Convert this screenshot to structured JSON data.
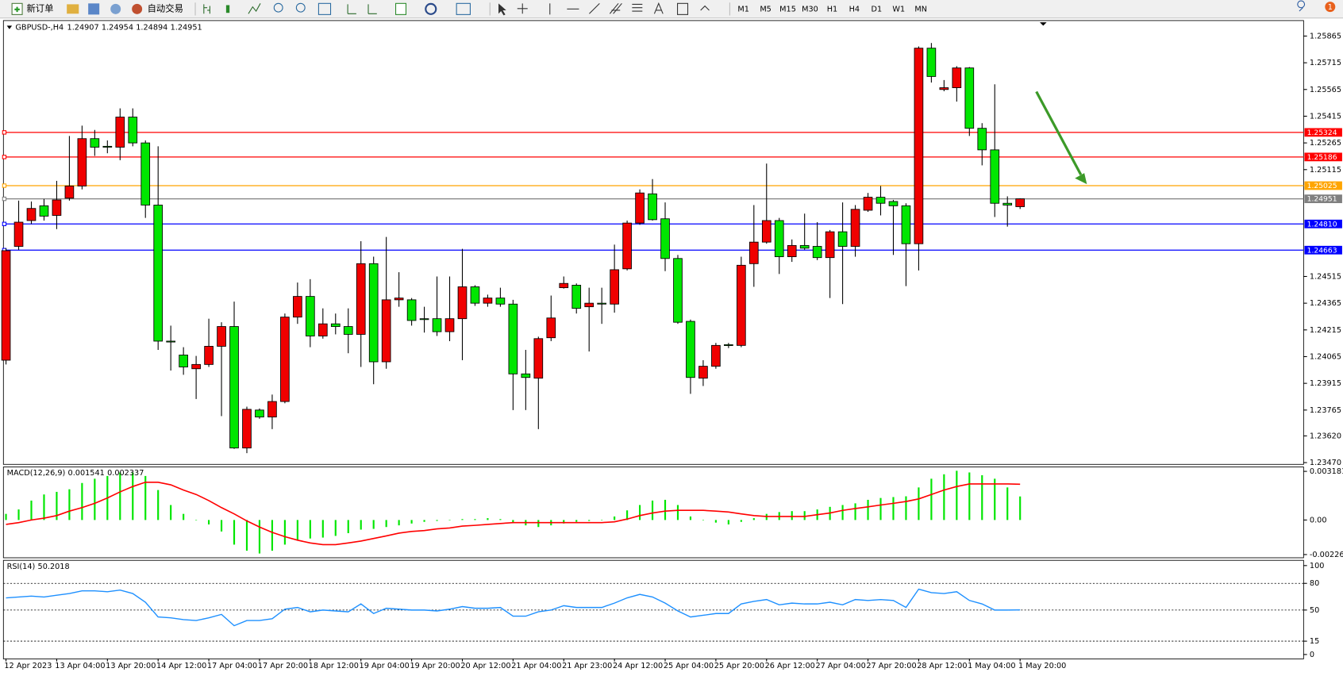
{
  "toolbar": {
    "new_order": "新订单",
    "auto_trading": "自动交易",
    "timeframes": [
      "M1",
      "M5",
      "M15",
      "M30",
      "H1",
      "H4",
      "D1",
      "W1",
      "MN"
    ],
    "badge": 1
  },
  "chart_data": [
    {
      "type": "candlestick",
      "title": "GBPUSD-,H4",
      "categories": [
        "12 Apr 2023",
        null,
        null,
        null,
        "13 Apr 04:00",
        null,
        null,
        null,
        "13 Apr 20:00",
        null,
        null,
        null,
        "14 Apr 12:00",
        null,
        null,
        null,
        "17 Apr 04:00",
        null,
        null,
        null,
        "17 Apr 20:00",
        null,
        null,
        null,
        "18 Apr 12:00",
        null,
        null,
        null,
        "19 Apr 04:00",
        null,
        null,
        null,
        "19 Apr 20:00",
        null,
        null,
        null,
        "20 Apr 12:00",
        null,
        null,
        null,
        "21 Apr 04:00",
        null,
        null,
        null,
        "21 Apr 23:00",
        null,
        null,
        null,
        "24 Apr 12:00",
        null,
        null,
        null,
        "25 Apr 04:00",
        null,
        null,
        null,
        "25 Apr 20:00",
        null,
        null,
        null,
        "26 Apr 12:00",
        null,
        null,
        null,
        "27 Apr 04:00",
        null,
        null,
        null,
        "27 Apr 20:00",
        null,
        null,
        null,
        "28 Apr 12:00",
        null,
        null,
        null,
        "1 May 04:00",
        null,
        null,
        null,
        "1 May 20:00"
      ],
      "open": [
        1.24045,
        1.24684,
        1.24829,
        1.24912,
        1.24858,
        1.24955,
        1.25023,
        1.25289,
        1.25246,
        1.25241,
        1.2541,
        1.25265,
        1.24916,
        1.24152,
        1.24074,
        1.23997,
        1.24021,
        1.24123,
        1.24234,
        1.23552,
        1.23765,
        1.23726,
        1.23813,
        1.24287,
        1.24403,
        1.24181,
        1.24249,
        1.24234,
        1.2419,
        1.24587,
        1.24036,
        1.24384,
        1.24384,
        1.24278,
        1.24278,
        1.24205,
        1.24278,
        1.24457,
        1.24365,
        1.24394,
        1.2436,
        1.23968,
        1.23944,
        1.24171,
        1.24452,
        1.24466,
        1.24345,
        1.24365,
        1.2436,
        1.24558,
        1.24815,
        1.24979,
        1.24839,
        1.24616,
        1.24263,
        1.23944,
        1.24011,
        1.24132,
        1.24128,
        1.24587,
        1.24708,
        1.24829,
        1.24626,
        1.24689,
        1.24684,
        1.24621,
        1.24766,
        1.24684,
        1.24887,
        1.2496,
        1.24936,
        1.24912,
        1.24699,
        1.25797,
        1.25565,
        1.25575,
        1.25686,
        1.25347,
        1.25226,
        1.24926,
        1.24907
      ],
      "high": [
        1.24674,
        1.24941,
        1.24936,
        1.2495,
        1.25052,
        1.25304,
        1.25362,
        1.25338,
        1.25279,
        1.25459,
        1.25459,
        1.25279,
        1.25246,
        1.24239,
        1.24118,
        1.24069,
        1.24278,
        1.24258,
        1.24374,
        1.23784,
        1.23774,
        1.23852,
        1.24307,
        1.24481,
        1.245,
        1.24336,
        1.24307,
        1.24336,
        1.24713,
        1.24626,
        1.24737,
        1.24539,
        1.24394,
        1.24345,
        1.24515,
        1.24515,
        1.2467,
        1.24466,
        1.24413,
        1.24452,
        1.24384,
        1.24103,
        1.24177,
        1.24408,
        1.24515,
        1.24476,
        1.24452,
        1.24452,
        1.24694,
        1.24829,
        1.25004,
        1.25062,
        1.24931,
        1.24636,
        1.24273,
        1.24045,
        1.24142,
        1.24142,
        1.24626,
        1.24916,
        1.25149,
        1.24844,
        1.24723,
        1.24868,
        1.2482,
        1.24776,
        1.24931,
        1.24916,
        1.24984,
        1.25023,
        1.24945,
        1.24926,
        1.25807,
        1.25826,
        1.25618,
        1.25696,
        1.25691,
        1.25376,
        1.25594,
        1.24965,
        1.24954
      ],
      "low": [
        1.24021,
        1.24665,
        1.2481,
        1.24829,
        1.24781,
        1.24941,
        1.25004,
        1.25192,
        1.25207,
        1.25168,
        1.25246,
        1.24844,
        1.24103,
        1.23987,
        1.23963,
        1.23827,
        1.24007,
        1.23731,
        1.23547,
        1.23523,
        1.23716,
        1.23658,
        1.23803,
        1.24249,
        1.24118,
        1.24166,
        1.2419,
        1.24084,
        1.24007,
        1.2391,
        1.23997,
        1.24345,
        1.24239,
        1.242,
        1.24181,
        1.24152,
        1.24045,
        1.2435,
        1.24345,
        1.24345,
        1.23765,
        1.23765,
        1.23658,
        1.24152,
        1.24447,
        1.24307,
        1.24094,
        1.24249,
        1.24312,
        1.24549,
        1.24805,
        1.24829,
        1.24545,
        1.24249,
        1.23856,
        1.239,
        1.23997,
        1.24113,
        1.24118,
        1.24457,
        1.24699,
        1.24529,
        1.24597,
        1.24665,
        1.24607,
        1.24394,
        1.2436,
        1.24626,
        1.24878,
        1.24858,
        1.24636,
        1.24461,
        1.24549,
        1.25604,
        1.25555,
        1.25497,
        1.25304,
        1.25139,
        1.24849,
        1.24795,
        1.24894
      ],
      "close": [
        1.2466,
        1.2482,
        1.24897,
        1.24854,
        1.24945,
        1.25023,
        1.25289,
        1.25241,
        1.25241,
        1.2541,
        1.25265,
        1.24916,
        1.24152,
        1.24147,
        1.24007,
        1.24021,
        1.24123,
        1.24234,
        1.23552,
        1.23769,
        1.23726,
        1.23813,
        1.24287,
        1.24403,
        1.24181,
        1.24249,
        1.24234,
        1.2419,
        1.24587,
        1.24036,
        1.24384,
        1.24394,
        1.24268,
        1.24273,
        1.24205,
        1.24278,
        1.24457,
        1.24365,
        1.24394,
        1.2436,
        1.23968,
        1.23948,
        1.24166,
        1.24282,
        1.24476,
        1.24336,
        1.24365,
        1.2436,
        1.24553,
        1.24815,
        1.24984,
        1.24834,
        1.24616,
        1.24258,
        1.23948,
        1.24011,
        1.24128,
        1.24128,
        1.24578,
        1.24708,
        1.24829,
        1.24626,
        1.24689,
        1.24674,
        1.24621,
        1.24766,
        1.24684,
        1.24892,
        1.2496,
        1.24926,
        1.24912,
        1.24699,
        1.25797,
        1.25638,
        1.25575,
        1.25686,
        1.25347,
        1.25226,
        1.24926,
        1.24916,
        1.24951
      ],
      "up_color": "#f00000",
      "down_color": "#00e600",
      "ylim": [
        1.2346,
        1.25952
      ],
      "yticks": [
        1.25865,
        1.25715,
        1.25565,
        1.25415,
        1.25265,
        1.25115,
        1.24515,
        1.24365,
        1.24215,
        1.24065,
        1.23915,
        1.23765,
        {
          "value": 1.2362,
          "label": "1.23620"
        },
        {
          "value": 1.2347,
          "label": "1.23470"
        }
      ],
      "levels": [
        {
          "value": 1.25324,
          "color": "#ff0000"
        },
        {
          "value": 1.25186,
          "color": "#ff0000"
        },
        {
          "value": 1.25025,
          "color": "#ffa500"
        },
        {
          "value": 1.24951,
          "color": "#808080"
        },
        {
          "value": 1.2481,
          "label": "1.24810",
          "color": "#0000ff"
        },
        {
          "value": 1.24663,
          "color": "#0000ff"
        }
      ]
    },
    {
      "type": "macd",
      "title": "MACD(12,26,9)",
      "series": [
        {
          "name": "MACD",
          "color": "#00e600",
          "values": [
            0.0004,
            0.00069,
            0.00127,
            0.00167,
            0.00184,
            0.00201,
            0.00242,
            0.0027,
            0.00288,
            0.00311,
            0.00311,
            0.00288,
            0.00196,
            0.00098,
            0.0004,
            0,
            -0.00029,
            -0.00075,
            -0.00161,
            -0.00201,
            -0.00219,
            -0.00201,
            -0.00161,
            -0.00132,
            -0.00121,
            -0.00115,
            -0.00104,
            -0.00086,
            -0.00063,
            -0.00058,
            -0.00046,
            -0.00035,
            -0.00023,
            -0.00012,
            -6e-05,
            0,
            6e-05,
            6e-05,
            0.00012,
            6e-05,
            -0.00017,
            -0.00035,
            -0.00046,
            -0.00035,
            -0.00023,
            -0.00012,
            -6e-05,
            0,
            0.00023,
            0.00063,
            0.00098,
            0.00127,
            0.00132,
            0.00098,
            0.00023,
            0,
            -0.00017,
            -0.00029,
            -0.00012,
            0.00012,
            0.0004,
            0.00052,
            0.00058,
            0.00058,
            0.00069,
            0.00086,
            0.00098,
            0.00109,
            0.00132,
            0.00144,
            0.0015,
            0.00155,
            0.00213,
            0.0027,
            0.00299,
            0.00322,
            0.00311,
            0.00293,
            0.0027,
            0.00213,
            0.001541
          ]
        },
        {
          "name": "Signal",
          "color": "#ff0000",
          "values": [
            -0.00029,
            -0.00017,
            0,
            0.00012,
            0.00029,
            0.00058,
            0.00081,
            0.00109,
            0.00144,
            0.00184,
            0.00219,
            0.00247,
            0.00247,
            0.0023,
            0.00196,
            0.00167,
            0.00127,
            0.00081,
            0.0004,
            -6e-05,
            -0.00046,
            -0.00081,
            -0.00109,
            -0.00132,
            -0.0015,
            -0.00161,
            -0.00161,
            -0.0015,
            -0.00138,
            -0.00121,
            -0.00104,
            -0.00086,
            -0.00075,
            -0.00069,
            -0.00058,
            -0.00052,
            -0.0004,
            -0.00035,
            -0.00029,
            -0.00023,
            -0.00017,
            -0.00017,
            -0.00017,
            -0.00017,
            -0.00017,
            -0.00017,
            -0.00017,
            -0.00017,
            -0.00012,
            6e-05,
            0.00029,
            0.00046,
            0.00058,
            0.00063,
            0.00063,
            0.00063,
            0.00058,
            0.00052,
            0.0004,
            0.00029,
            0.00023,
            0.00023,
            0.00023,
            0.00023,
            0.00035,
            0.00046,
            0.00063,
            0.00075,
            0.00086,
            0.00098,
            0.00109,
            0.00121,
            0.00138,
            0.00167,
            0.00196,
            0.00219,
            0.00236,
            0.00236,
            0.00236,
            0.00236,
            0.002337
          ]
        }
      ],
      "ylim": [
        -0.00247,
        0.00347
      ],
      "yticks": [
        0.003181,
        {
          "value": 0,
          "label": "0.00"
        },
        -0.00226
      ]
    },
    {
      "type": "line",
      "title": "RSI(14)",
      "color": "#1e90ff",
      "values": [
        63.7,
        64.7,
        65.7,
        64.7,
        66.7,
        68.6,
        71.6,
        71.6,
        70.6,
        72.5,
        68.6,
        58.8,
        42.2,
        41.2,
        39.2,
        38.2,
        41.2,
        45.1,
        32.4,
        38.2,
        38.2,
        40.2,
        51.0,
        52.9,
        48.0,
        50.0,
        49.0,
        48.0,
        56.9,
        46.1,
        52.0,
        51.0,
        50.0,
        50.0,
        49.0,
        51.0,
        53.9,
        52.0,
        52.0,
        52.9,
        43.1,
        43.1,
        48.0,
        50.0,
        54.9,
        52.9,
        52.9,
        52.9,
        57.8,
        63.7,
        67.6,
        64.7,
        57.8,
        49.0,
        42.2,
        44.1,
        46.1,
        46.1,
        56.9,
        59.8,
        61.8,
        55.9,
        57.8,
        56.9,
        56.9,
        58.8,
        55.9,
        61.8,
        60.8,
        61.8,
        60.8,
        52.9,
        73.5,
        69.6,
        68.6,
        70.6,
        60.8,
        56.9,
        50.0,
        50.0,
        50.2018
      ],
      "ylim": [
        -4.9,
        105.9
      ],
      "yticks": [
        100,
        80,
        50,
        15,
        0
      ],
      "levels": [
        80,
        50,
        15
      ]
    }
  ]
}
